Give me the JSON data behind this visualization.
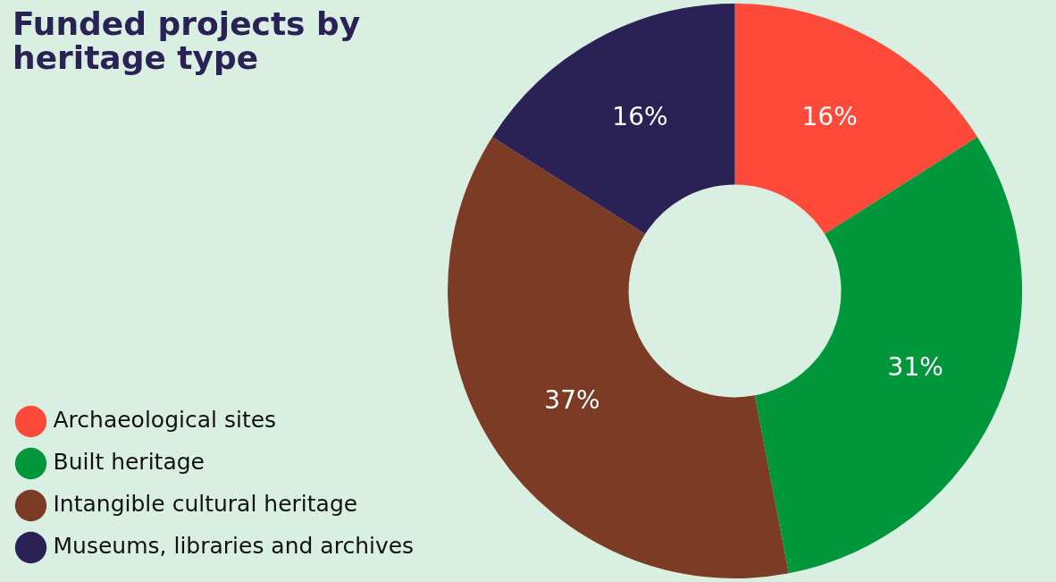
{
  "chart_data": {
    "type": "donut",
    "title": "Funded projects by heritage type",
    "categories": [
      "Archaeological sites",
      "Built heritage",
      "Intangible cultural heritage",
      "Museums, libraries and archives"
    ],
    "values": [
      16,
      31,
      37,
      16
    ],
    "colors": [
      "#ff4a3a",
      "#00963c",
      "#7b3b24",
      "#2a2155"
    ],
    "value_labels": [
      "16%",
      "31%",
      "37%",
      "16%"
    ],
    "legend": "bottom left"
  }
}
